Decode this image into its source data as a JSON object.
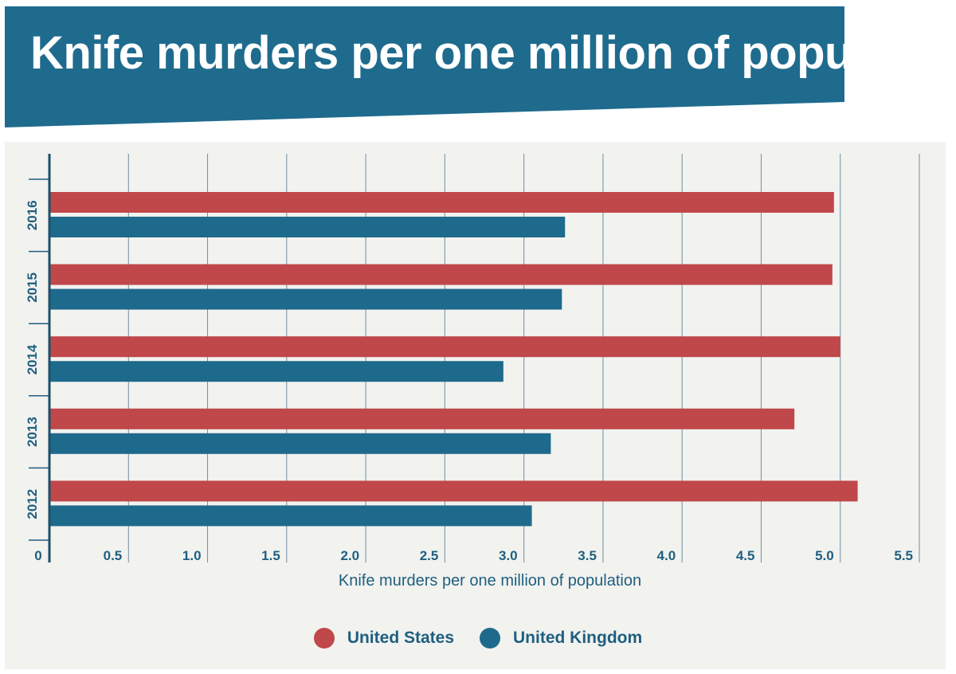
{
  "title": "Knife murders per one million of population",
  "colors": {
    "banner": "#1f6b8e",
    "panel": "#f2f2ef",
    "us": "#c0474a",
    "uk": "#1e6a8c",
    "text": "#1e5f80",
    "grid": "#6e8fa3"
  },
  "legend": {
    "items": [
      {
        "label": "United States",
        "color": "#c0474a"
      },
      {
        "label": "United Kingdom",
        "color": "#1e6a8c"
      }
    ]
  },
  "chart_data": {
    "type": "bar",
    "orientation": "horizontal",
    "title": "Knife murders per one million of population",
    "xlabel": "Knife murders per one million of population",
    "ylabel": "",
    "categories": [
      "2016",
      "2015",
      "2014",
      "2013",
      "2012"
    ],
    "series": [
      {
        "name": "United States",
        "color": "#c0474a",
        "values": [
          4.96,
          4.95,
          5.0,
          4.71,
          5.11
        ]
      },
      {
        "name": "United Kingdom",
        "color": "#1e6a8c",
        "values": [
          3.26,
          3.24,
          2.87,
          3.17,
          3.05
        ]
      }
    ],
    "xlim": [
      0,
      5.5
    ],
    "xticks": [
      "0",
      "0.5",
      "1.0",
      "1.5",
      "2.0",
      "2.5",
      "3.0",
      "3.5",
      "4.0",
      "4.5",
      "5.0",
      "5.5"
    ],
    "xtick_values": [
      0,
      0.5,
      1.0,
      1.5,
      2.0,
      2.5,
      3.0,
      3.5,
      4.0,
      4.5,
      5.0,
      5.5
    ],
    "grid": true,
    "legend_position": "bottom"
  }
}
